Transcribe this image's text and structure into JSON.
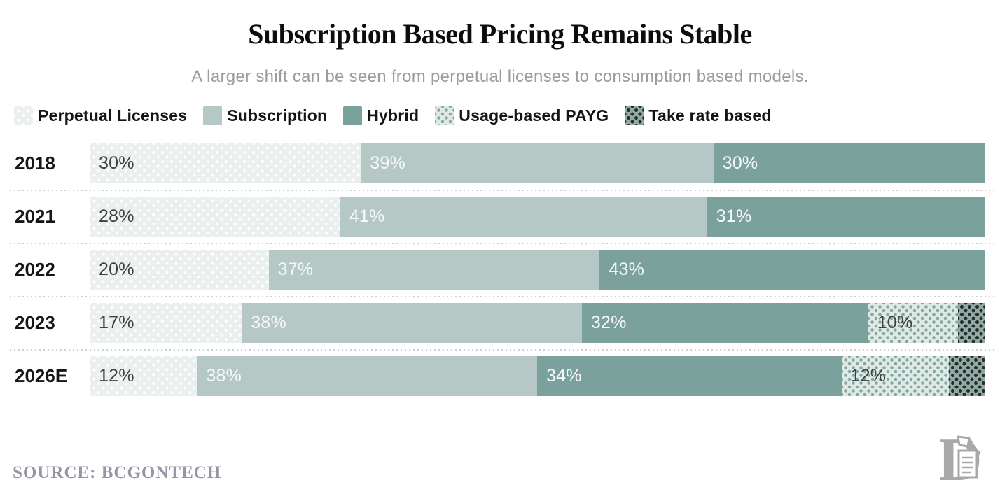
{
  "title": "Subscription Based Pricing Remains Stable",
  "subtitle": "A larger shift can be seen from perpetual licenses to consumption based models.",
  "source": "SOURCE: BCGONTECH",
  "logo": "letter-D-with-scroll-monogram",
  "colors": {
    "perpetual_bg": "#ebf0ee",
    "perpetual_dot": "#ffffff",
    "subscription": "#b6c8c5",
    "hybrid": "#7ba19d",
    "usage_bg": "#dfe9e6",
    "usage_dot": "#84a7a0",
    "take_bg": "#93aaa4",
    "take_dot": "#222e2b",
    "title_text": "#0d0d0d",
    "subtitle_text": "#9c9c9c",
    "source_text": "#9a93a6",
    "separator": "#cfcfcf"
  },
  "legend": [
    {
      "key": "perpetual",
      "label": "Perpetual Licenses"
    },
    {
      "key": "subscription",
      "label": "Subscription"
    },
    {
      "key": "hybrid",
      "label": "Hybrid"
    },
    {
      "key": "usage",
      "label": "Usage-based PAYG"
    },
    {
      "key": "take",
      "label": "Take rate based"
    }
  ],
  "chart_data": {
    "type": "bar",
    "orientation": "horizontal",
    "stacked": true,
    "unit": "%",
    "grid": false,
    "legend_position": "top-left",
    "categories": [
      "2018",
      "2021",
      "2022",
      "2023",
      "2026E"
    ],
    "series": [
      {
        "name": "Perpetual Licenses",
        "key": "perpetual",
        "label_style": "dark",
        "values": [
          30,
          28,
          20,
          17,
          12
        ]
      },
      {
        "name": "Subscription",
        "key": "subscription",
        "label_style": "light",
        "values": [
          39,
          41,
          37,
          38,
          38
        ]
      },
      {
        "name": "Hybrid",
        "key": "hybrid",
        "label_style": "light",
        "values": [
          30,
          31,
          43,
          32,
          34
        ]
      },
      {
        "name": "Usage-based PAYG",
        "key": "usage",
        "label_style": "dark",
        "values": [
          0,
          0,
          0,
          10,
          12
        ]
      },
      {
        "name": "Take rate based",
        "key": "take",
        "label_style": "none",
        "values": [
          0,
          0,
          0,
          3,
          4
        ]
      }
    ]
  }
}
